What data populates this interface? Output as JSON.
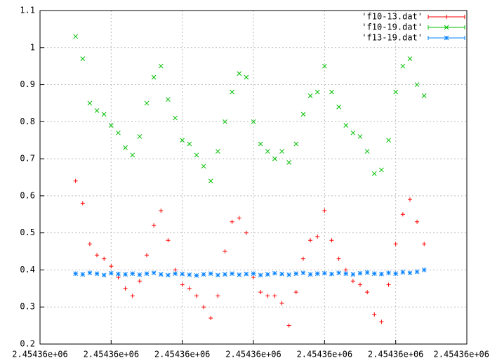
{
  "chart_data": {
    "type": "scatter",
    "xlim": [
      2454355.5,
      2454361.5
    ],
    "xticks": [
      {
        "value": 2454355.5,
        "label": "2.45436e+06"
      },
      {
        "value": 2454356.5,
        "label": "2.45436e+06"
      },
      {
        "value": 2454357.5,
        "label": "2.45436e+06"
      },
      {
        "value": 2454358.5,
        "label": "2.45436e+06"
      },
      {
        "value": 2454359.5,
        "label": "2.45436e+06"
      },
      {
        "value": 2454360.5,
        "label": "2.45436e+06"
      },
      {
        "value": 2454361.5,
        "label": "2.45436e+06"
      }
    ],
    "ylim": [
      0.2,
      1.1
    ],
    "yticks": [
      0.2,
      0.3,
      0.4,
      0.5,
      0.6,
      0.7,
      0.8,
      0.9,
      1,
      1.1
    ],
    "grid": true,
    "legend": "top-right",
    "x": [
      2454356,
      2454356.1,
      2454356.2,
      2454356.3,
      2454356.4,
      2454356.5,
      2454356.6,
      2454356.7,
      2454356.8,
      2454356.9,
      2454357,
      2454357.1,
      2454357.2,
      2454357.3,
      2454357.4,
      2454357.5,
      2454357.6,
      2454357.7,
      2454357.8,
      2454357.9,
      2454358,
      2454358.1,
      2454358.2,
      2454358.3,
      2454358.4,
      2454358.5,
      2454358.6,
      2454358.7,
      2454358.8,
      2454358.9,
      2454359,
      2454359.1,
      2454359.2,
      2454359.3,
      2454359.4,
      2454359.5,
      2454359.6,
      2454359.7,
      2454359.8,
      2454359.9,
      2454360,
      2454360.1,
      2454360.2,
      2454360.3,
      2454360.4,
      2454360.5,
      2454360.6,
      2454360.7,
      2454360.8,
      2454360.9
    ],
    "series": [
      {
        "name": "'f10-13.dat'",
        "color": "#ff0000",
        "marker": "plus",
        "values": [
          0.64,
          0.58,
          0.47,
          0.44,
          0.43,
          0.41,
          0.38,
          0.35,
          0.33,
          0.37,
          0.44,
          0.52,
          0.56,
          0.48,
          0.4,
          0.36,
          0.35,
          0.33,
          0.3,
          0.27,
          0.33,
          0.45,
          0.53,
          0.54,
          0.5,
          0.38,
          0.34,
          0.33,
          0.33,
          0.31,
          0.25,
          0.34,
          0.43,
          0.48,
          0.49,
          0.56,
          0.48,
          0.43,
          0.4,
          0.37,
          0.36,
          0.34,
          0.28,
          0.26,
          0.36,
          0.47,
          0.55,
          0.59,
          0.53,
          0.47
        ]
      },
      {
        "name": "'f10-19.dat'",
        "color": "#00c000",
        "marker": "cross",
        "values": [
          1.03,
          0.97,
          0.85,
          0.83,
          0.82,
          0.79,
          0.77,
          0.73,
          0.71,
          0.76,
          0.85,
          0.92,
          0.95,
          0.86,
          0.81,
          0.75,
          0.74,
          0.71,
          0.68,
          0.64,
          0.72,
          0.8,
          0.88,
          0.93,
          0.92,
          0.8,
          0.74,
          0.72,
          0.7,
          0.72,
          0.69,
          0.74,
          0.82,
          0.87,
          0.88,
          0.95,
          0.88,
          0.84,
          0.79,
          0.77,
          0.76,
          0.72,
          0.66,
          0.67,
          0.75,
          0.88,
          0.95,
          0.97,
          0.9,
          0.87
        ]
      },
      {
        "name": "'f13-19.dat'",
        "color": "#0080ff",
        "marker": "star",
        "values": [
          0.39,
          0.388,
          0.392,
          0.39,
          0.386,
          0.391,
          0.389,
          0.388,
          0.39,
          0.387,
          0.39,
          0.392,
          0.388,
          0.386,
          0.39,
          0.389,
          0.387,
          0.385,
          0.388,
          0.39,
          0.386,
          0.388,
          0.39,
          0.387,
          0.389,
          0.39,
          0.386,
          0.388,
          0.391,
          0.389,
          0.387,
          0.39,
          0.392,
          0.388,
          0.39,
          0.391,
          0.389,
          0.392,
          0.39,
          0.388,
          0.391,
          0.393,
          0.39,
          0.389,
          0.392,
          0.39,
          0.394,
          0.392,
          0.395,
          0.4
        ]
      }
    ]
  }
}
